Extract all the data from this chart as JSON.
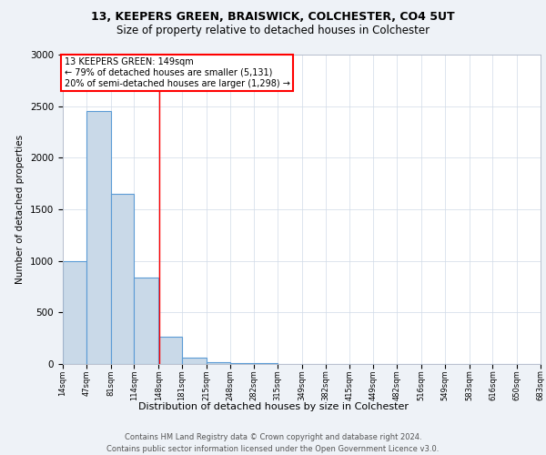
{
  "title1": "13, KEEPERS GREEN, BRAISWICK, COLCHESTER, CO4 5UT",
  "title2": "Size of property relative to detached houses in Colchester",
  "xlabel": "Distribution of detached houses by size in Colchester",
  "ylabel": "Number of detached properties",
  "annotation_line1": "13 KEEPERS GREEN: 149sqm",
  "annotation_line2": "← 79% of detached houses are smaller (5,131)",
  "annotation_line3": "20% of semi-detached houses are larger (1,298) →",
  "footnote1": "Contains HM Land Registry data © Crown copyright and database right 2024.",
  "footnote2": "Contains public sector information licensed under the Open Government Licence v3.0.",
  "bar_color": "#c9d9e8",
  "bar_edge_color": "#5b9bd5",
  "bar_values": [
    995,
    2455,
    1650,
    840,
    265,
    60,
    20,
    10,
    5,
    3,
    2,
    1,
    1,
    1,
    0,
    0,
    0,
    0,
    0,
    0
  ],
  "bin_labels": [
    "14sqm",
    "47sqm",
    "81sqm",
    "114sqm",
    "148sqm",
    "181sqm",
    "215sqm",
    "248sqm",
    "282sqm",
    "315sqm",
    "349sqm",
    "382sqm",
    "415sqm",
    "449sqm",
    "482sqm",
    "516sqm",
    "549sqm",
    "583sqm",
    "616sqm",
    "650sqm",
    "683sqm"
  ],
  "num_bins": 20,
  "bin_edges": [
    14,
    47,
    81,
    114,
    148,
    181,
    215,
    248,
    282,
    315,
    349,
    382,
    415,
    449,
    482,
    516,
    549,
    583,
    616,
    650,
    683
  ],
  "ylim": [
    0,
    3000
  ],
  "yticks": [
    0,
    500,
    1000,
    1500,
    2000,
    2500,
    3000
  ],
  "property_sqm": 149,
  "background_color": "#eef2f7",
  "plot_background": "#ffffff",
  "grid_color": "#d0dae8"
}
